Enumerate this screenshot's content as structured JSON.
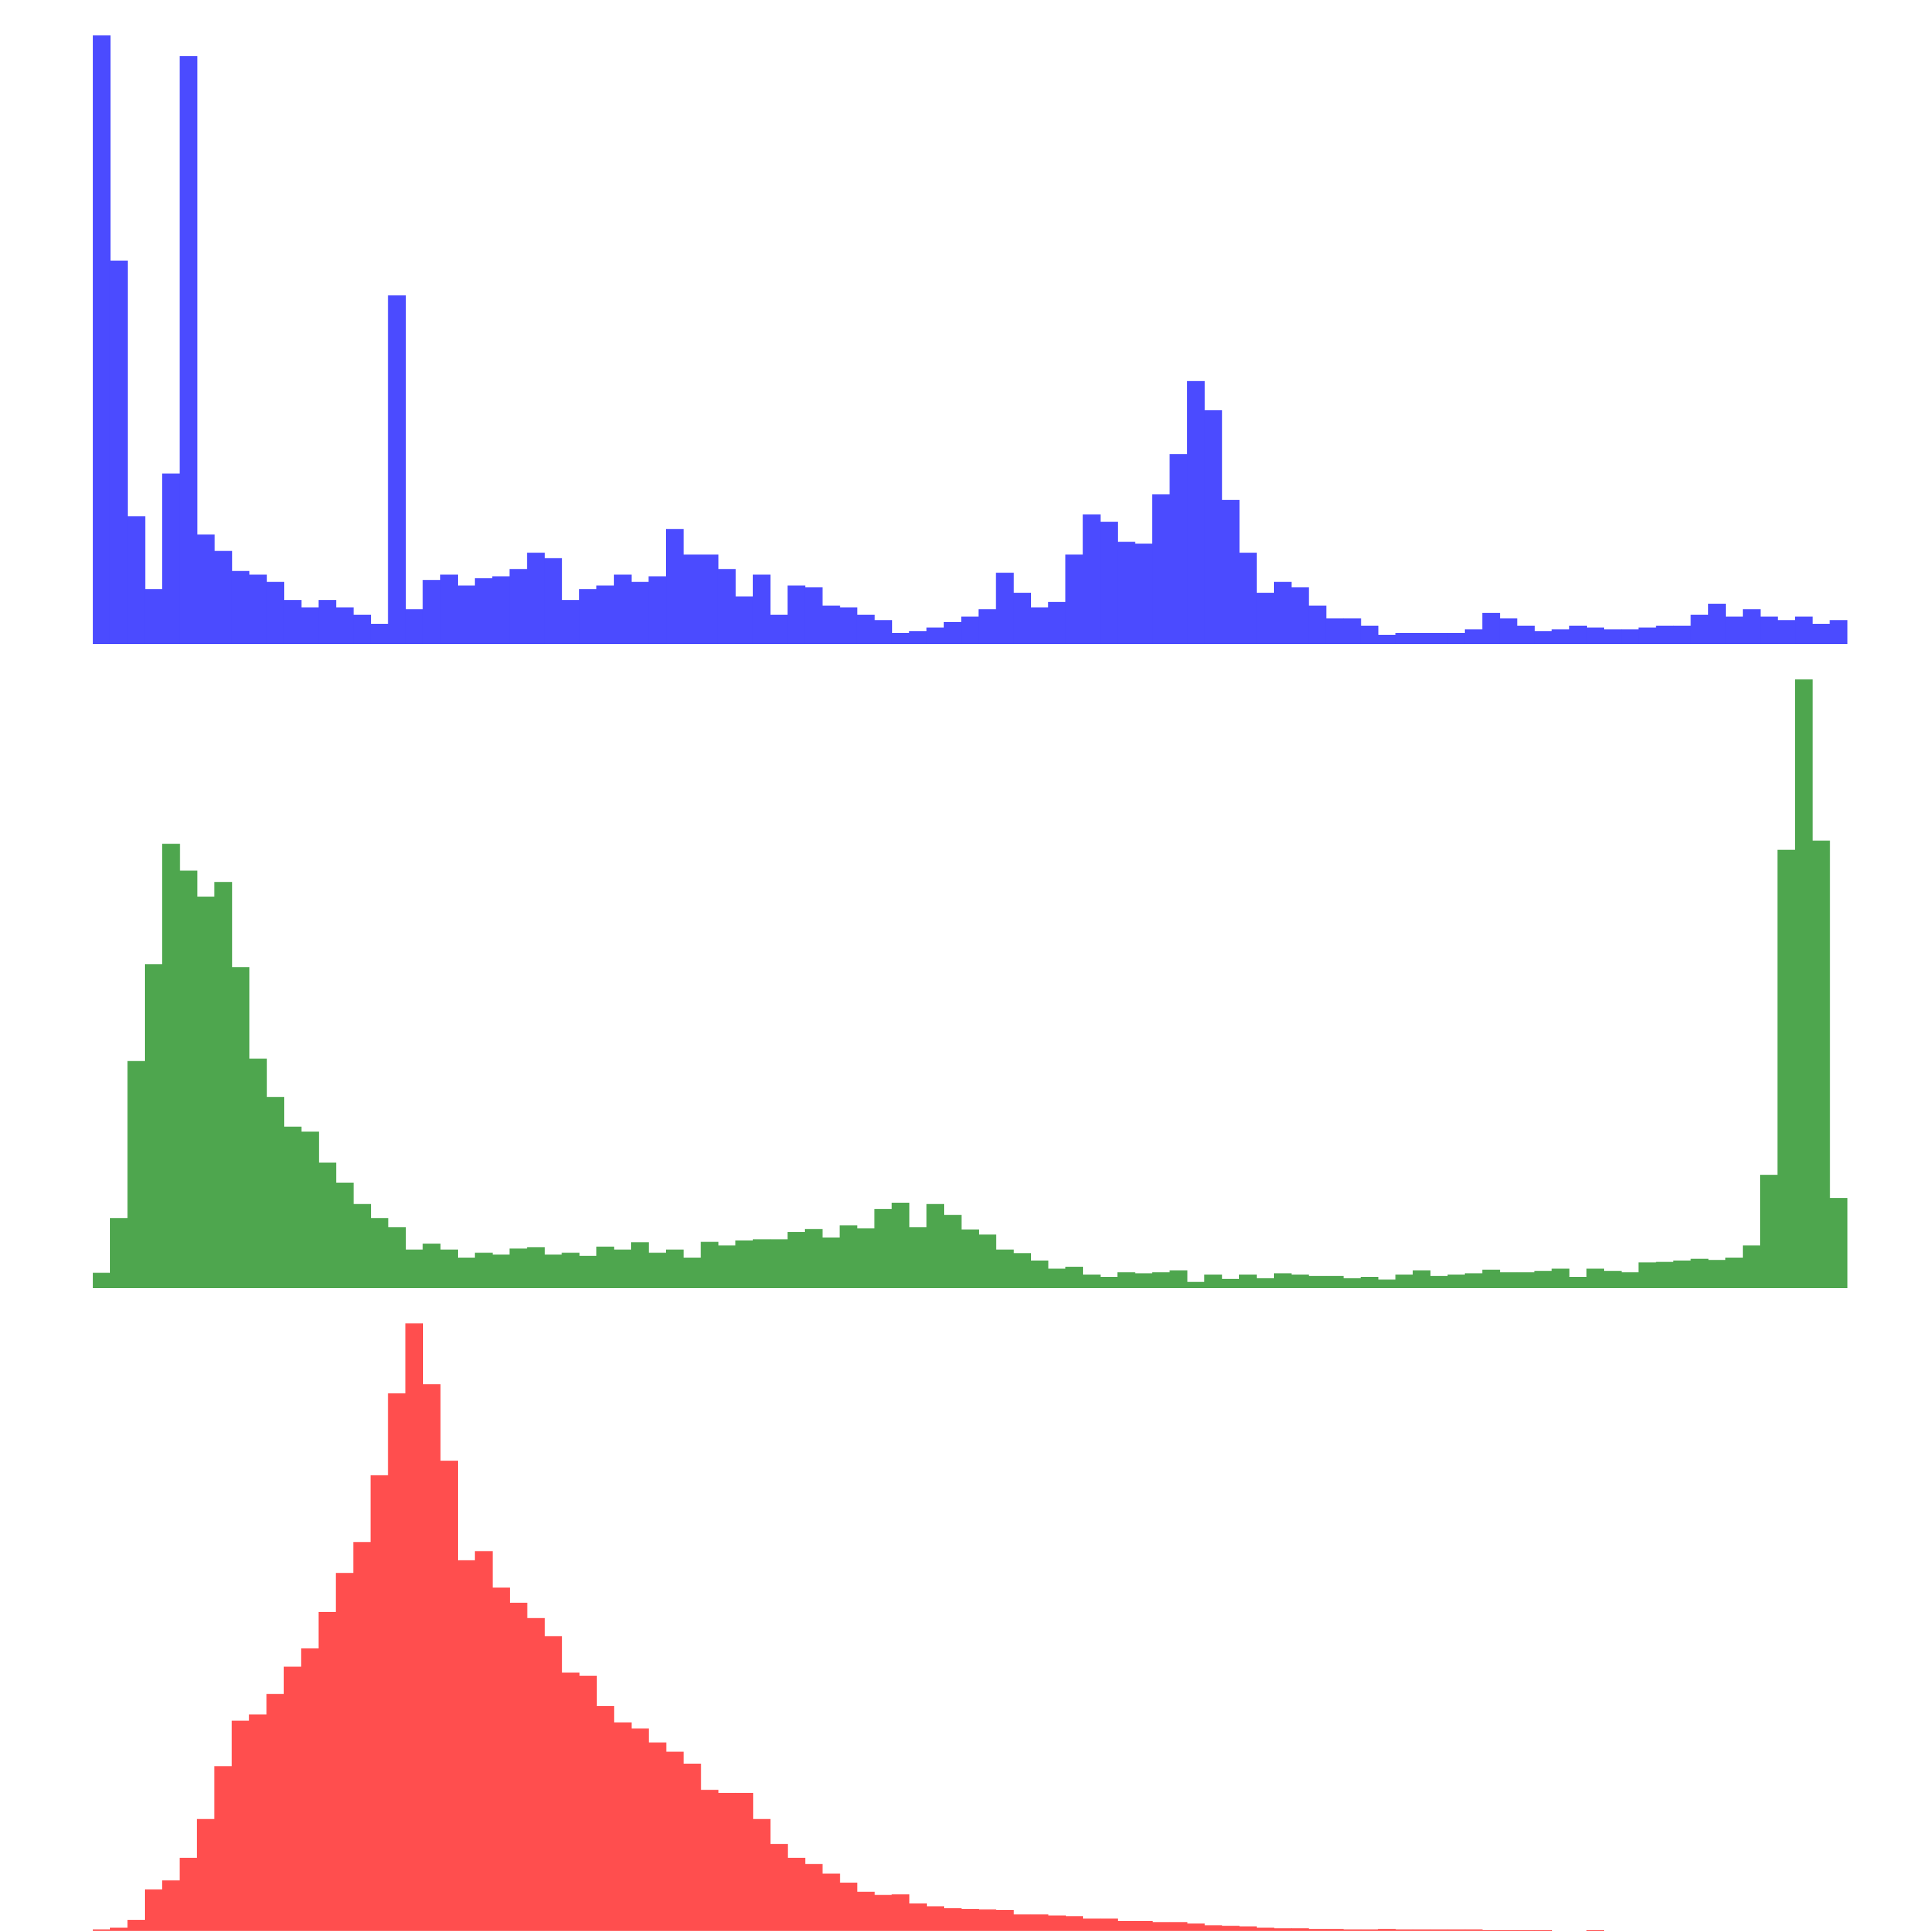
{
  "chart_data": [
    {
      "type": "bar",
      "title": "",
      "xlabel": "",
      "ylabel": "",
      "grid": false,
      "color": "#4b4bff",
      "ylim": [
        0,
        1
      ],
      "values": [
        1.0,
        0.63,
        0.21,
        0.09,
        0.28,
        0.966,
        0.18,
        0.153,
        0.12,
        0.114,
        0.102,
        0.072,
        0.06,
        0.072,
        0.06,
        0.048,
        0.033,
        0.573,
        0.057,
        0.105,
        0.114,
        0.096,
        0.108,
        0.111,
        0.123,
        0.15,
        0.141,
        0.072,
        0.09,
        0.096,
        0.114,
        0.102,
        0.111,
        0.189,
        0.147,
        0.147,
        0.123,
        0.078,
        0.114,
        0.048,
        0.096,
        0.093,
        0.063,
        0.06,
        0.048,
        0.039,
        0.018,
        0.021,
        0.027,
        0.036,
        0.045,
        0.057,
        0.117,
        0.084,
        0.06,
        0.069,
        0.147,
        0.213,
        0.201,
        0.168,
        0.165,
        0.246,
        0.312,
        0.432,
        0.384,
        0.237,
        0.15,
        0.084,
        0.102,
        0.093,
        0.063,
        0.042,
        0.042,
        0.03,
        0.015,
        0.018,
        0.018,
        0.018,
        0.018,
        0.024,
        0.051,
        0.042,
        0.03,
        0.021,
        0.024,
        0.03,
        0.027,
        0.024,
        0.024,
        0.027,
        0.03,
        0.03,
        0.048,
        0.066,
        0.045,
        0.057,
        0.045,
        0.039,
        0.045,
        0.033,
        0.039
      ]
    },
    {
      "type": "bar",
      "title": "",
      "xlabel": "",
      "ylabel": "",
      "grid": false,
      "color": "#4ea64e",
      "ylim": [
        0,
        1
      ],
      "values": [
        0.025,
        0.115,
        0.373,
        0.532,
        0.73,
        0.686,
        0.643,
        0.667,
        0.527,
        0.377,
        0.314,
        0.265,
        0.257,
        0.206,
        0.173,
        0.138,
        0.115,
        0.1,
        0.063,
        0.073,
        0.063,
        0.05,
        0.058,
        0.055,
        0.065,
        0.067,
        0.055,
        0.058,
        0.053,
        0.068,
        0.063,
        0.075,
        0.058,
        0.063,
        0.05,
        0.076,
        0.07,
        0.078,
        0.08,
        0.08,
        0.092,
        0.097,
        0.083,
        0.103,
        0.098,
        0.13,
        0.14,
        0.1,
        0.138,
        0.12,
        0.096,
        0.088,
        0.063,
        0.057,
        0.045,
        0.032,
        0.035,
        0.022,
        0.018,
        0.026,
        0.024,
        0.026,
        0.029,
        0.01,
        0.022,
        0.015,
        0.022,
        0.016,
        0.024,
        0.022,
        0.02,
        0.02,
        0.016,
        0.018,
        0.014,
        0.022,
        0.029,
        0.02,
        0.022,
        0.024,
        0.03,
        0.026,
        0.026,
        0.028,
        0.032,
        0.018,
        0.032,
        0.028,
        0.026,
        0.042,
        0.043,
        0.045,
        0.048,
        0.046,
        0.05,
        0.07,
        0.186,
        0.72,
        1.0,
        0.735,
        0.148
      ]
    },
    {
      "type": "bar",
      "title": "",
      "xlabel": "",
      "ylabel": "",
      "grid": false,
      "color": "#ff4e4e",
      "ylim": [
        0,
        1
      ],
      "values": [
        0.002,
        0.005,
        0.018,
        0.068,
        0.083,
        0.12,
        0.184,
        0.271,
        0.346,
        0.356,
        0.39,
        0.435,
        0.465,
        0.525,
        0.589,
        0.64,
        0.75,
        0.885,
        1.0,
        0.9,
        0.774,
        0.61,
        0.625,
        0.565,
        0.54,
        0.515,
        0.485,
        0.425,
        0.42,
        0.37,
        0.343,
        0.333,
        0.31,
        0.295,
        0.275,
        0.232,
        0.227,
        0.227,
        0.184,
        0.143,
        0.12,
        0.11,
        0.094,
        0.079,
        0.064,
        0.059,
        0.06,
        0.045,
        0.04,
        0.037,
        0.036,
        0.035,
        0.034,
        0.027,
        0.027,
        0.025,
        0.024,
        0.02,
        0.02,
        0.016,
        0.016,
        0.014,
        0.014,
        0.012,
        0.009,
        0.008,
        0.007,
        0.005,
        0.004,
        0.004,
        0.003,
        0.003,
        0.002,
        0.002,
        0.003,
        0.002,
        0.002,
        0.002,
        0.002,
        0.002,
        0.001,
        0.001,
        0.001,
        0.001,
        0.0,
        0.0,
        0.001,
        0.0,
        0.0,
        0.0,
        0.0,
        0.0,
        0.0,
        0.0,
        0.0,
        0.0,
        0.0,
        0.0,
        0.0,
        0.0,
        0.0
      ]
    }
  ]
}
